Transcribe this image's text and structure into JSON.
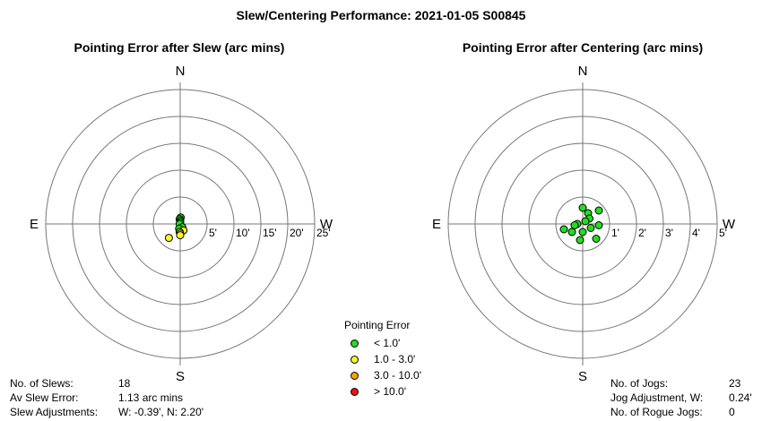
{
  "title": "Slew/Centering Performance: 2021-01-05 S00845",
  "chart_data": [
    {
      "type": "scatter",
      "subtype": "polar",
      "title": "Pointing Error after Slew (arc mins)",
      "compass": {
        "north": "N",
        "south": "S",
        "east": "E",
        "west": "W"
      },
      "ring_step": 5,
      "rings": 5,
      "ring_labels": [
        "5'",
        "10'",
        "15'",
        "20'",
        "25'"
      ],
      "points": [
        {
          "x": 0.1,
          "y": 1.2,
          "cat": "lt1"
        },
        {
          "x": -0.1,
          "y": 0.9,
          "cat": "lt1"
        },
        {
          "x": 0.0,
          "y": 0.6,
          "cat": "lt1"
        },
        {
          "x": 0.0,
          "y": 0.3,
          "cat": "lt1"
        },
        {
          "x": -0.1,
          "y": 0.0,
          "cat": "lt1"
        },
        {
          "x": 0.4,
          "y": -0.6,
          "cat": "lt1"
        },
        {
          "x": -0.2,
          "y": -0.9,
          "cat": "lt1"
        },
        {
          "x": 0.6,
          "y": -1.2,
          "cat": "1to3"
        },
        {
          "x": -0.1,
          "y": -1.5,
          "cat": "1to3"
        },
        {
          "x": 0.0,
          "y": -1.8,
          "cat": "1to3"
        },
        {
          "x": 0.0,
          "y": -2.1,
          "cat": "1to3"
        },
        {
          "x": -2.1,
          "y": -2.6,
          "cat": "1to3"
        }
      ]
    },
    {
      "type": "scatter",
      "subtype": "polar",
      "title": "Pointing Error after Centering (arc mins)",
      "compass": {
        "north": "N",
        "south": "S",
        "east": "E",
        "west": "W"
      },
      "ring_step": 1,
      "rings": 5,
      "ring_labels": [
        "1'",
        "2'",
        "3'",
        "4'",
        "5'"
      ],
      "points": [
        {
          "x": 0.0,
          "y": 0.6,
          "cat": "lt1"
        },
        {
          "x": 0.2,
          "y": 0.4,
          "cat": "lt1"
        },
        {
          "x": 0.6,
          "y": 0.5,
          "cat": "lt1"
        },
        {
          "x": 0.25,
          "y": 0.2,
          "cat": "lt1"
        },
        {
          "x": 0.1,
          "y": 0.1,
          "cat": "lt1"
        },
        {
          "x": -0.2,
          "y": 0.0,
          "cat": "lt1"
        },
        {
          "x": -0.3,
          "y": -0.05,
          "cat": "lt1"
        },
        {
          "x": -0.7,
          "y": -0.2,
          "cat": "lt1"
        },
        {
          "x": 0.6,
          "y": -0.05,
          "cat": "lt1"
        },
        {
          "x": 0.3,
          "y": -0.15,
          "cat": "lt1"
        },
        {
          "x": -0.4,
          "y": -0.3,
          "cat": "lt1"
        },
        {
          "x": 0.0,
          "y": -0.3,
          "cat": "lt1"
        },
        {
          "x": -0.1,
          "y": -0.6,
          "cat": "lt1"
        },
        {
          "x": 0.5,
          "y": -0.55,
          "cat": "lt1"
        }
      ]
    }
  ],
  "legend": {
    "title": "Pointing Error",
    "items": [
      {
        "label": "< 1.0'",
        "color": "#22dd22"
      },
      {
        "label": "1.0 - 3.0'",
        "color": "#f5f52a"
      },
      {
        "label": "3.0 - 10.0'",
        "color": "#f0a500"
      },
      {
        "label": "> 10.0'",
        "color": "#ee1111"
      }
    ]
  },
  "slew_stats": {
    "slews_label": "No. of Slews:",
    "slews_value": "18",
    "av_error_label": "Av Slew Error:",
    "av_error_value": "1.13 arc mins",
    "adjust_label": "Slew Adjustments:",
    "adjust_value": "W: -0.39', N: 2.20'"
  },
  "jog_stats": {
    "jogs_label": "No. of Jogs:",
    "jogs_value": "23",
    "adjust_label": "Jog Adjustment, W:",
    "adjust_value": "0.24'",
    "rogue_label": "No. of Rogue Jogs:",
    "rogue_value": "0"
  }
}
